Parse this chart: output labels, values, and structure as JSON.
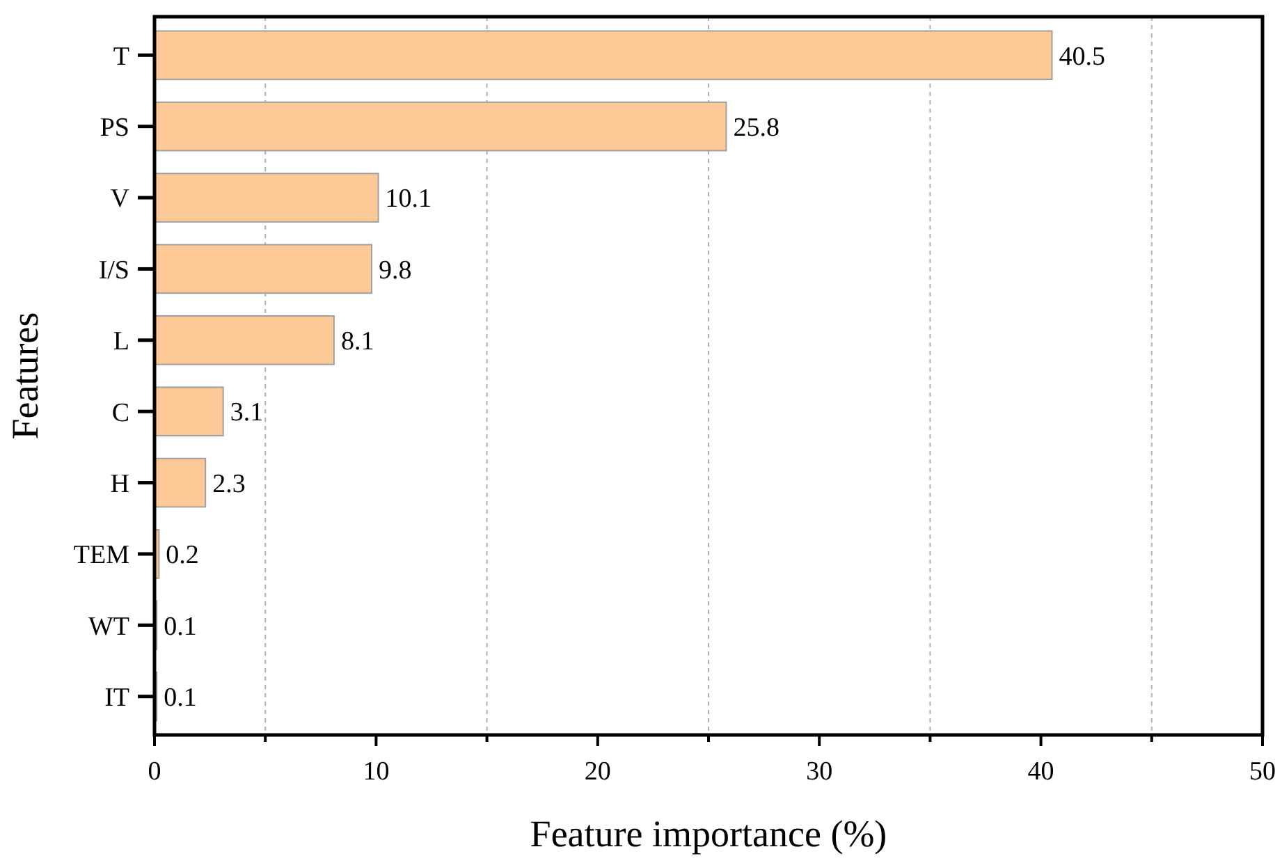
{
  "chart_data": {
    "type": "bar",
    "orientation": "horizontal",
    "xlabel": "Feature importance (%)",
    "ylabel": "Features",
    "categories": [
      "T",
      "PS",
      "V",
      "I/S",
      "L",
      "C",
      "H",
      "TEM",
      "WT",
      "IT"
    ],
    "values": [
      40.5,
      25.8,
      10.1,
      9.8,
      8.1,
      3.1,
      2.3,
      0.2,
      0.1,
      0.1
    ],
    "color": "#fbc896",
    "data_labels": true,
    "grid": "x",
    "xlim": [
      0,
      50
    ],
    "xticks": [
      0,
      {
        "value": 5,
        "label": null
      },
      10,
      {
        "value": 15,
        "label": null
      },
      20,
      {
        "value": 25,
        "label": null
      },
      30,
      {
        "value": 35,
        "label": null
      },
      40,
      {
        "value": 45,
        "label": null
      },
      50
    ]
  }
}
